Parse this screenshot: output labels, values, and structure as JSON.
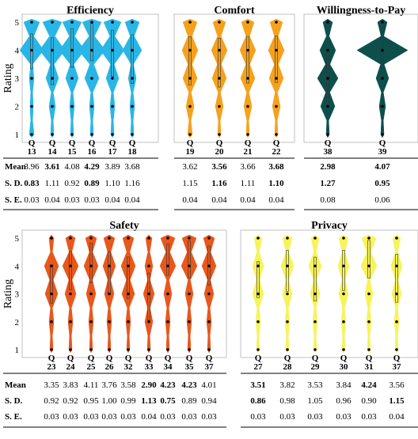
{
  "y_axis": {
    "label": "Rating",
    "ticks": [
      "1",
      "2",
      "3",
      "4",
      "5"
    ]
  },
  "row_labels": [
    "Mean",
    "S. D.",
    "S. E."
  ],
  "colors": {
    "efficiency": "#29b6e6",
    "comfort": "#f5a11e",
    "willingness": "#0d4f4b",
    "safety": "#e8571c",
    "privacy": "#f7f35a"
  },
  "chart_data": [
    {
      "type": "violin",
      "title": "Efficiency",
      "ylabel": "Rating",
      "ylim": [
        1,
        5
      ],
      "color": "#29b6e6",
      "series": [
        {
          "question": "13",
          "mean": "3.96",
          "sd": "0.83",
          "se": "0.03",
          "bold_mean": false,
          "bold_sd": true
        },
        {
          "question": "14",
          "mean": "3.61",
          "sd": "1.11",
          "se": "0.04",
          "bold_mean": true,
          "bold_sd": false
        },
        {
          "question": "15",
          "mean": "4.08",
          "sd": "0.92",
          "se": "0.03",
          "bold_mean": false,
          "bold_sd": false
        },
        {
          "question": "16",
          "mean": "4.29",
          "sd": "0.89",
          "se": "0.03",
          "bold_mean": true,
          "bold_sd": true
        },
        {
          "question": "17",
          "mean": "3.89",
          "sd": "1.10",
          "se": "0.04",
          "bold_mean": false,
          "bold_sd": false
        },
        {
          "question": "18",
          "mean": "3.68",
          "sd": "1.16",
          "se": "0.04",
          "bold_mean": false,
          "bold_sd": false
        }
      ]
    },
    {
      "type": "violin",
      "title": "Comfort",
      "ylim": [
        1,
        5
      ],
      "color": "#f5a11e",
      "series": [
        {
          "question": "19",
          "mean": "3.62",
          "sd": "1.15",
          "se": "0.04",
          "bold_mean": false,
          "bold_sd": false
        },
        {
          "question": "20",
          "mean": "3.56",
          "sd": "1.16",
          "se": "0.04",
          "bold_mean": true,
          "bold_sd": true
        },
        {
          "question": "21",
          "mean": "3.66",
          "sd": "1.11",
          "se": "0.04",
          "bold_mean": false,
          "bold_sd": false
        },
        {
          "question": "22",
          "mean": "3.68",
          "sd": "1.10",
          "se": "0.04",
          "bold_mean": true,
          "bold_sd": true
        }
      ]
    },
    {
      "type": "violin",
      "title": "Willingness-to-Pay",
      "ylim": [
        1,
        5
      ],
      "color": "#0d4f4b",
      "series": [
        {
          "question": "38",
          "mean": "2.98",
          "sd": "1.27",
          "se": "0.08",
          "bold_mean": true,
          "bold_sd": true
        },
        {
          "question": "39",
          "mean": "4.07",
          "sd": "0.95",
          "se": "0.06",
          "bold_mean": true,
          "bold_sd": true
        }
      ]
    },
    {
      "type": "violin",
      "title": "Safety",
      "ylabel": "Rating",
      "ylim": [
        1,
        5
      ],
      "color": "#e8571c",
      "series": [
        {
          "question": "23",
          "mean": "3.35",
          "sd": "0.92",
          "se": "0.03",
          "bold_mean": false,
          "bold_sd": false
        },
        {
          "question": "24",
          "mean": "3.83",
          "sd": "0.92",
          "se": "0.03",
          "bold_mean": false,
          "bold_sd": false
        },
        {
          "question": "25",
          "mean": "4.11",
          "sd": "0.95",
          "se": "0.03",
          "bold_mean": false,
          "bold_sd": false
        },
        {
          "question": "26",
          "mean": "3.76",
          "sd": "1.00",
          "se": "0.03",
          "bold_mean": false,
          "bold_sd": false
        },
        {
          "question": "32",
          "mean": "3.58",
          "sd": "0.99",
          "se": "0.03",
          "bold_mean": false,
          "bold_sd": false
        },
        {
          "question": "33",
          "mean": "2.90",
          "sd": "1.13",
          "se": "0.04",
          "bold_mean": true,
          "bold_sd": true
        },
        {
          "question": "34",
          "mean": "4.23",
          "sd": "0.75",
          "se": "0.03",
          "bold_mean": true,
          "bold_sd": true
        },
        {
          "question": "35",
          "mean": "4.23",
          "sd": "0.89",
          "se": "0.03",
          "bold_mean": true,
          "bold_sd": false
        },
        {
          "question": "37",
          "mean": "4.01",
          "sd": "0.94",
          "se": "0.03",
          "bold_mean": false,
          "bold_sd": false
        }
      ]
    },
    {
      "type": "violin",
      "title": "Privacy",
      "ylim": [
        1,
        5
      ],
      "color": "#f7f35a",
      "series": [
        {
          "question": "27",
          "mean": "3.51",
          "sd": "0.86",
          "se": "0.03",
          "bold_mean": true,
          "bold_sd": true
        },
        {
          "question": "28",
          "mean": "3.82",
          "sd": "0.98",
          "se": "0.03",
          "bold_mean": false,
          "bold_sd": false
        },
        {
          "question": "29",
          "mean": "3.53",
          "sd": "1.05",
          "se": "0.03",
          "bold_mean": false,
          "bold_sd": false
        },
        {
          "question": "30",
          "mean": "3.84",
          "sd": "0.96",
          "se": "0.03",
          "bold_mean": false,
          "bold_sd": false
        },
        {
          "question": "31",
          "mean": "4.24",
          "sd": "0.90",
          "se": "0.03",
          "bold_mean": true,
          "bold_sd": false
        },
        {
          "question": "37",
          "mean": "3.56",
          "sd": "1.15",
          "se": "0.04",
          "bold_mean": false,
          "bold_sd": true
        }
      ]
    }
  ]
}
